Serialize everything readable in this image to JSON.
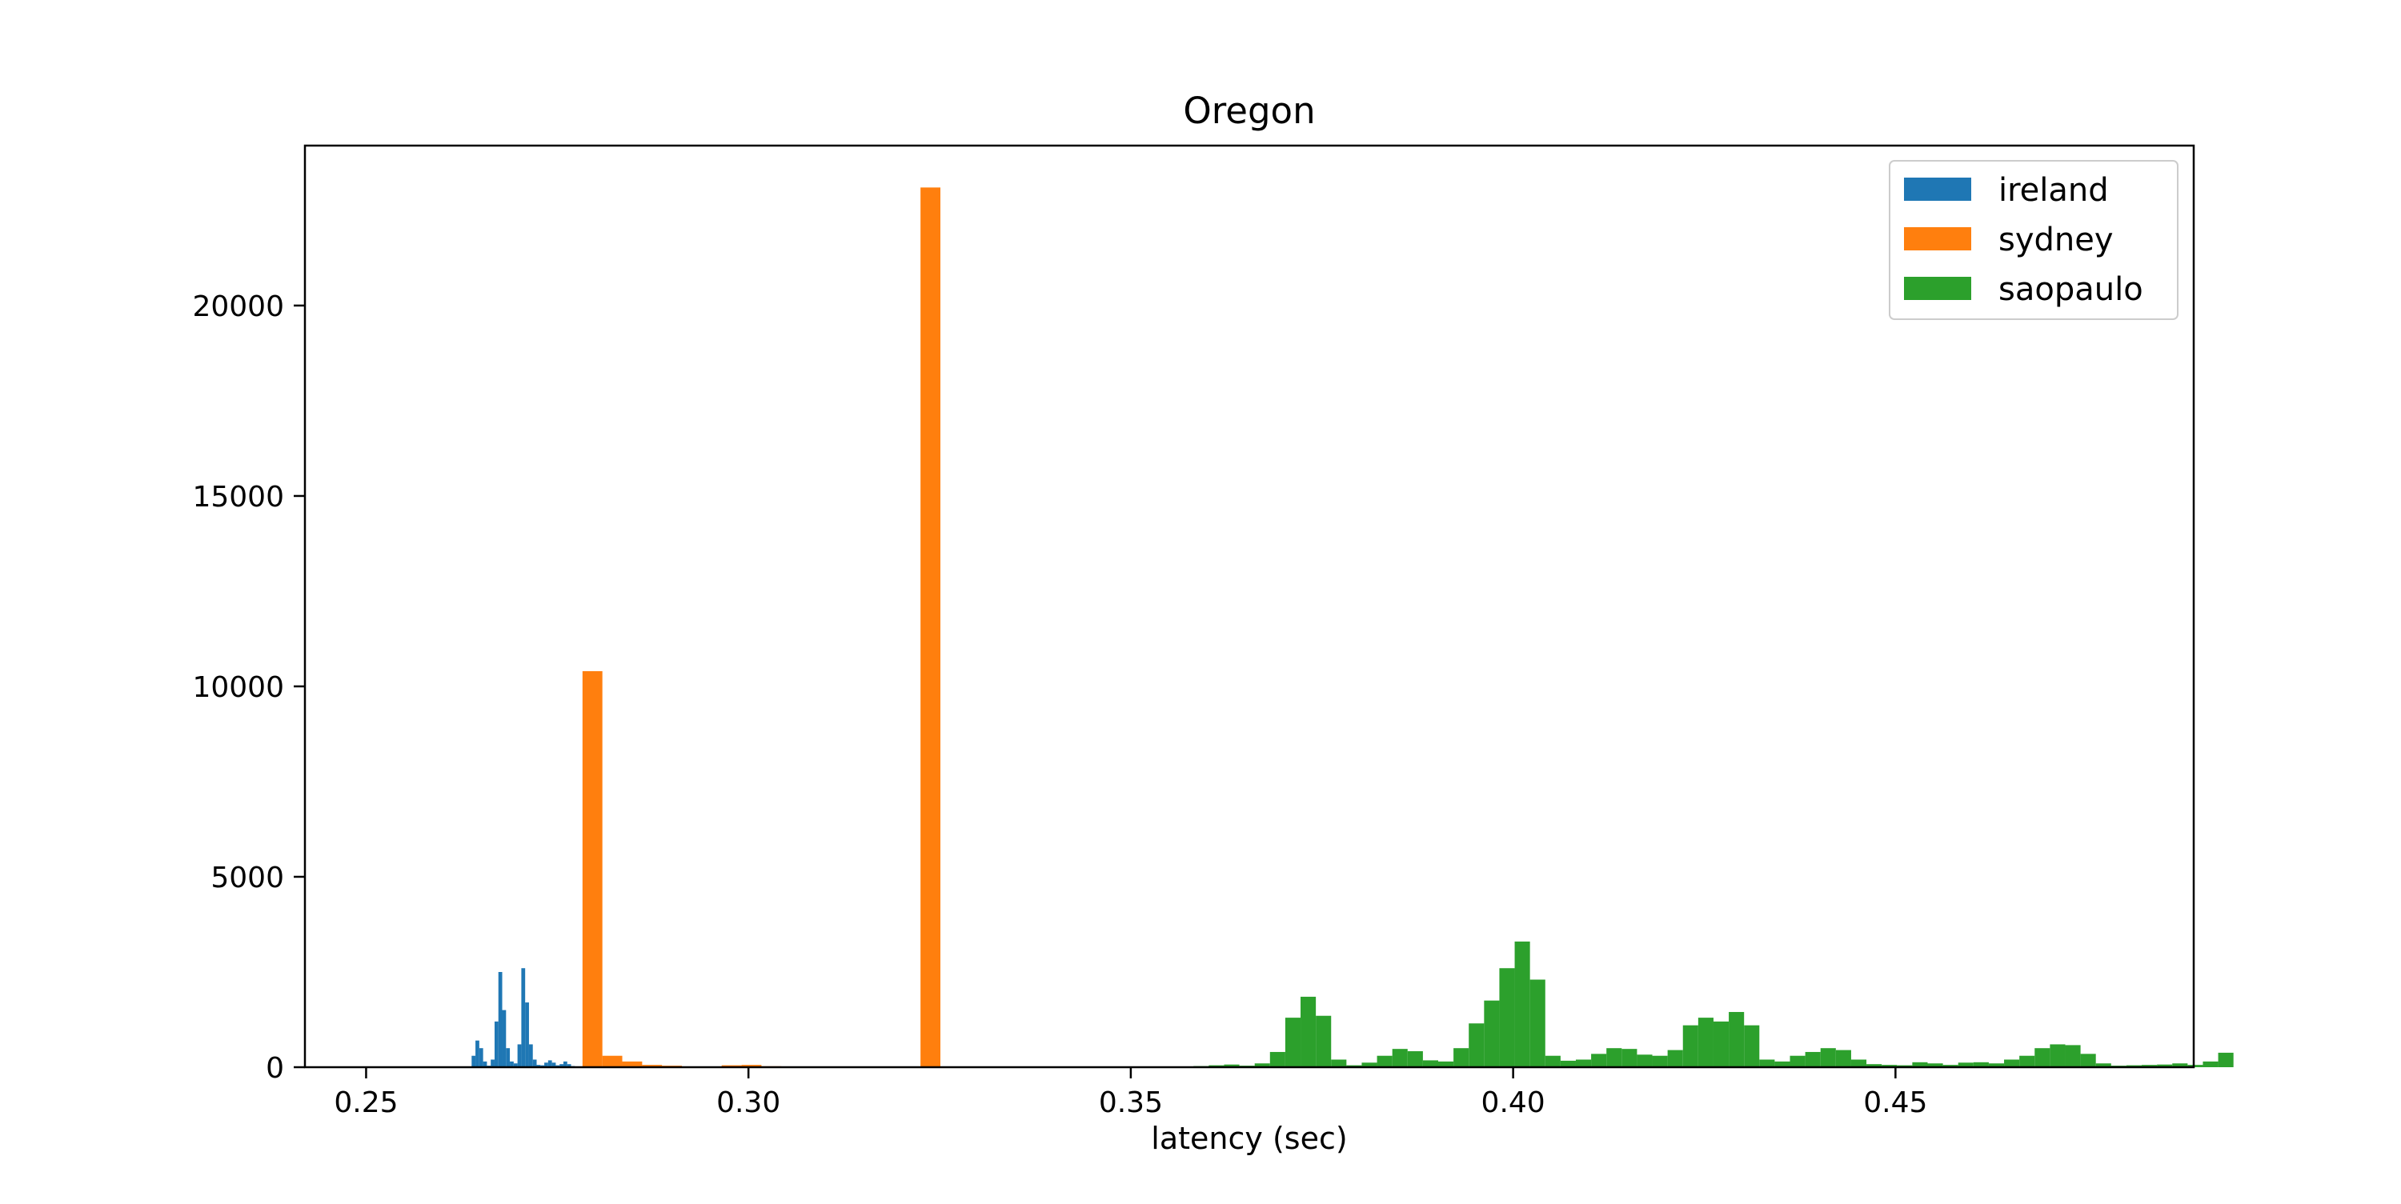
{
  "chart_data": {
    "type": "histogram",
    "title": "Oregon",
    "xlabel": "latency (sec)",
    "ylabel": "",
    "xlim": [
      0.242,
      0.489
    ],
    "ylim": [
      0,
      24200
    ],
    "xticks": [
      0.25,
      0.3,
      0.35,
      0.4,
      0.45
    ],
    "xtick_labels": [
      "0.25",
      "0.30",
      "0.35",
      "0.40",
      "0.45"
    ],
    "yticks": [
      0,
      5000,
      10000,
      15000,
      20000
    ],
    "ytick_labels": [
      "0",
      "5000",
      "10000",
      "15000",
      "20000"
    ],
    "legend": {
      "position": "top-right",
      "entries": [
        "ireland",
        "sydney",
        "saopaulo"
      ]
    },
    "series": [
      {
        "name": "ireland",
        "color": "#1f77b4",
        "bins": [
          [
            0.2638,
            0.2643,
            300
          ],
          [
            0.2643,
            0.2648,
            700
          ],
          [
            0.2648,
            0.2653,
            500
          ],
          [
            0.2653,
            0.2658,
            150
          ],
          [
            0.2658,
            0.2663,
            40
          ],
          [
            0.2663,
            0.2668,
            200
          ],
          [
            0.2668,
            0.2673,
            1200
          ],
          [
            0.2673,
            0.2678,
            2500
          ],
          [
            0.2678,
            0.2683,
            1500
          ],
          [
            0.2683,
            0.2688,
            500
          ],
          [
            0.2688,
            0.2693,
            150
          ],
          [
            0.2693,
            0.2698,
            100
          ],
          [
            0.2698,
            0.2703,
            600
          ],
          [
            0.2703,
            0.2708,
            2600
          ],
          [
            0.2708,
            0.2713,
            1700
          ],
          [
            0.2713,
            0.2718,
            600
          ],
          [
            0.2718,
            0.2723,
            200
          ],
          [
            0.2723,
            0.2728,
            60
          ],
          [
            0.2728,
            0.2733,
            50
          ],
          [
            0.2733,
            0.2738,
            120
          ],
          [
            0.2738,
            0.2743,
            180
          ],
          [
            0.2743,
            0.2748,
            120
          ],
          [
            0.2748,
            0.2753,
            50
          ],
          [
            0.2753,
            0.2758,
            80
          ],
          [
            0.2758,
            0.2763,
            150
          ],
          [
            0.2763,
            0.2768,
            80
          ],
          [
            0.2768,
            0.2773,
            30
          ]
        ]
      },
      {
        "name": "sydney",
        "color": "#ff7f0e",
        "bins": [
          [
            0.2783,
            0.2809,
            10400
          ],
          [
            0.2809,
            0.2835,
            300
          ],
          [
            0.2835,
            0.2861,
            150
          ],
          [
            0.2861,
            0.2887,
            60
          ],
          [
            0.2887,
            0.2913,
            40
          ],
          [
            0.2913,
            0.2939,
            20
          ],
          [
            0.2939,
            0.2965,
            15
          ],
          [
            0.2965,
            0.2991,
            50
          ],
          [
            0.2991,
            0.3017,
            60
          ],
          [
            0.3017,
            0.3043,
            25
          ],
          [
            0.3043,
            0.3069,
            10
          ],
          [
            0.3069,
            0.3095,
            10
          ],
          [
            0.3095,
            0.3121,
            5
          ],
          [
            0.3121,
            0.3147,
            5
          ],
          [
            0.3147,
            0.3173,
            5
          ],
          [
            0.3173,
            0.3199,
            5
          ],
          [
            0.3199,
            0.3225,
            10
          ],
          [
            0.3225,
            0.3251,
            23100
          ]
        ]
      },
      {
        "name": "saopaulo",
        "color": "#2ca02c",
        "bins": [
          [
            0.3582,
            0.3602,
            30
          ],
          [
            0.3602,
            0.3622,
            50
          ],
          [
            0.3622,
            0.3642,
            70
          ],
          [
            0.3642,
            0.3662,
            40
          ],
          [
            0.3662,
            0.3682,
            100
          ],
          [
            0.3682,
            0.3702,
            400
          ],
          [
            0.3702,
            0.3722,
            1300
          ],
          [
            0.3722,
            0.3742,
            1850
          ],
          [
            0.3742,
            0.3762,
            1350
          ],
          [
            0.3762,
            0.3782,
            200
          ],
          [
            0.3782,
            0.3802,
            50
          ],
          [
            0.3802,
            0.3822,
            120
          ],
          [
            0.3822,
            0.3842,
            300
          ],
          [
            0.3842,
            0.3862,
            480
          ],
          [
            0.3862,
            0.3882,
            420
          ],
          [
            0.3882,
            0.3902,
            180
          ],
          [
            0.3902,
            0.3922,
            150
          ],
          [
            0.3922,
            0.3942,
            500
          ],
          [
            0.3942,
            0.3962,
            1150
          ],
          [
            0.3962,
            0.3982,
            1750
          ],
          [
            0.3982,
            0.4002,
            2600
          ],
          [
            0.4002,
            0.4022,
            3300
          ],
          [
            0.4022,
            0.4042,
            2300
          ],
          [
            0.4042,
            0.4062,
            300
          ],
          [
            0.4062,
            0.4082,
            170
          ],
          [
            0.4082,
            0.4102,
            200
          ],
          [
            0.4102,
            0.4122,
            350
          ],
          [
            0.4122,
            0.4142,
            500
          ],
          [
            0.4142,
            0.4162,
            480
          ],
          [
            0.4162,
            0.4182,
            330
          ],
          [
            0.4182,
            0.4202,
            300
          ],
          [
            0.4202,
            0.4222,
            450
          ],
          [
            0.4222,
            0.4242,
            1100
          ],
          [
            0.4242,
            0.4262,
            1300
          ],
          [
            0.4262,
            0.4282,
            1200
          ],
          [
            0.4282,
            0.4302,
            1450
          ],
          [
            0.4302,
            0.4322,
            1100
          ],
          [
            0.4322,
            0.4342,
            200
          ],
          [
            0.4342,
            0.4362,
            150
          ],
          [
            0.4362,
            0.4382,
            300
          ],
          [
            0.4382,
            0.4402,
            400
          ],
          [
            0.4402,
            0.4422,
            500
          ],
          [
            0.4422,
            0.4442,
            450
          ],
          [
            0.4442,
            0.4462,
            200
          ],
          [
            0.4462,
            0.4482,
            80
          ],
          [
            0.4482,
            0.4502,
            60
          ],
          [
            0.4502,
            0.4522,
            50
          ],
          [
            0.4522,
            0.4542,
            130
          ],
          [
            0.4542,
            0.4562,
            100
          ],
          [
            0.4562,
            0.4582,
            60
          ],
          [
            0.4582,
            0.4602,
            120
          ],
          [
            0.4602,
            0.4622,
            130
          ],
          [
            0.4622,
            0.4642,
            100
          ],
          [
            0.4642,
            0.4662,
            200
          ],
          [
            0.4662,
            0.4682,
            300
          ],
          [
            0.4682,
            0.4702,
            500
          ],
          [
            0.4702,
            0.4722,
            600
          ],
          [
            0.4722,
            0.4742,
            580
          ],
          [
            0.4742,
            0.4762,
            350
          ],
          [
            0.4762,
            0.4782,
            100
          ],
          [
            0.4782,
            0.4802,
            40
          ],
          [
            0.4802,
            0.4822,
            50
          ],
          [
            0.4822,
            0.4842,
            60
          ],
          [
            0.4842,
            0.4862,
            70
          ],
          [
            0.4862,
            0.4882,
            100
          ],
          [
            0.4882,
            0.4902,
            60
          ],
          [
            0.4902,
            0.4922,
            150
          ],
          [
            0.4922,
            0.4942,
            380
          ]
        ]
      }
    ]
  }
}
